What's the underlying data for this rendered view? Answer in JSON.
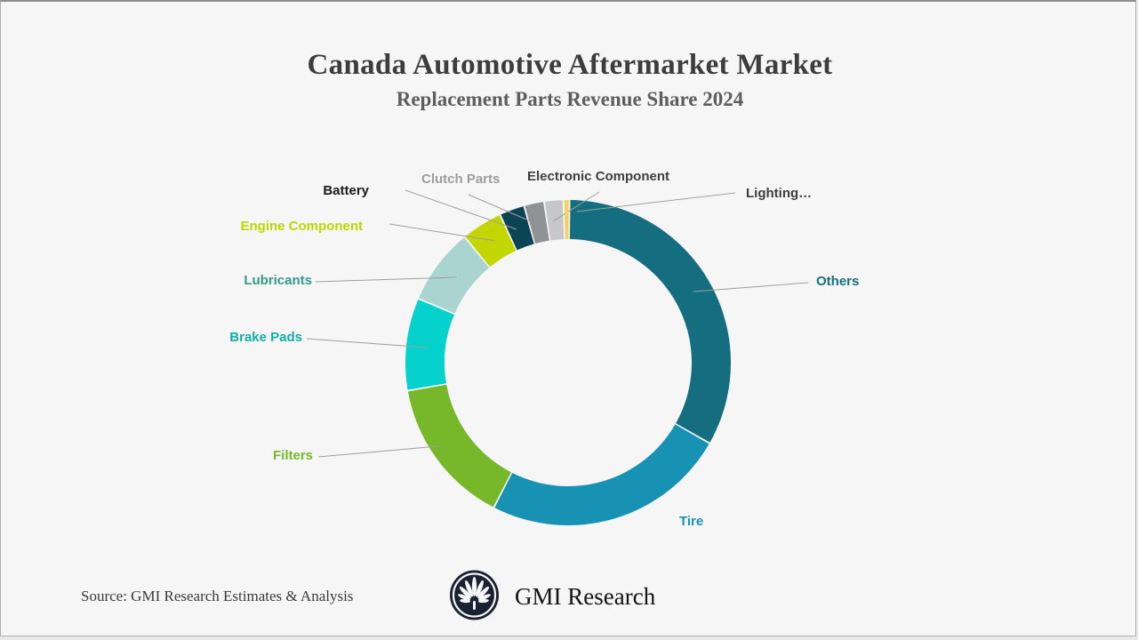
{
  "page": {
    "background": "#f6f6f6",
    "border_color": "#8f8f8f"
  },
  "header": {
    "title": "Canada Automotive Aftermarket Market",
    "subtitle": "Replacement Parts Revenue Share 2024",
    "title_color": "#3d3d3d",
    "subtitle_color": "#5e5e5e"
  },
  "chart_data": {
    "type": "pie",
    "variant": "donut",
    "title": "Canada Automotive Aftermarket Market",
    "subtitle": "Replacement Parts Revenue Share 2024",
    "unit": "percent of revenue (values estimated from arc angles; chart shows no numeric labels)",
    "legend_position": "callout-labels",
    "leader_line_color": "#9f9f9f",
    "segments": [
      {
        "label": "Others",
        "value": 33.1,
        "color": "#146e7f",
        "label_color": "#15707e"
      },
      {
        "label": "Tire",
        "value": 24.3,
        "color": "#1792b4",
        "label_color": "#1792b4"
      },
      {
        "label": "Filters",
        "value": 14.7,
        "color": "#76b82a",
        "label_color": "#76b82a"
      },
      {
        "label": "Brake Pads",
        "value": 9.2,
        "color": "#06d2cd",
        "label_color": "#10aea8"
      },
      {
        "label": "Lubricants",
        "value": 7.6,
        "color": "#a9d4cf",
        "label_color": "#37998a"
      },
      {
        "label": "Engine Component",
        "value": 4.1,
        "color": "#c4d600",
        "label_color": "#bcd600"
      },
      {
        "label": "Battery",
        "value": 2.5,
        "color": "#0b4455",
        "label_color": "#1a1a1a"
      },
      {
        "label": "Clutch Parts",
        "value": 2.0,
        "color": "#8e9294",
        "label_color": "#9d9d9d"
      },
      {
        "label": "Electronic Component",
        "value": 1.9,
        "color": "#c6c7c8",
        "label_color": "#3f3f3f"
      },
      {
        "label": "Lighting…",
        "value": 0.6,
        "color": "#f5d060",
        "label_color": "#3f3f3f"
      }
    ]
  },
  "footer": {
    "source": "Source: GMI Research Estimates & Analysis",
    "brand": "GMI Research",
    "logo_color": "#1a2130"
  }
}
